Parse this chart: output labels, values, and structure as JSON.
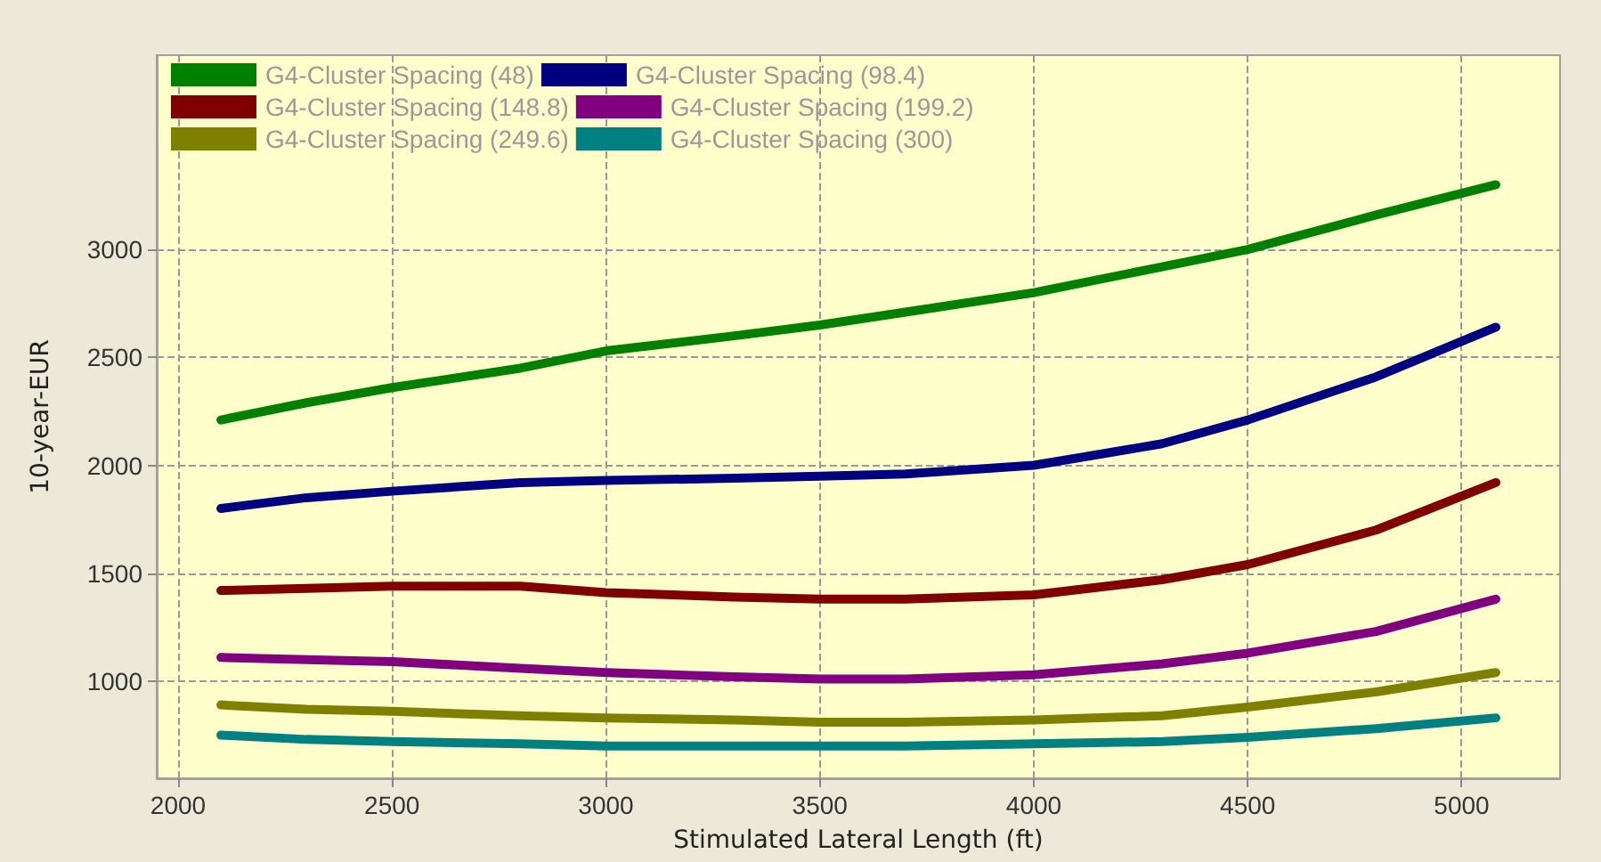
{
  "chart_data": {
    "type": "line",
    "xlabel": "Stimulated Lateral Length (ft)",
    "ylabel": "10-year-EUR",
    "xlim": [
      1950,
      5230
    ],
    "xticks": [
      2000,
      2500,
      3000,
      3500,
      4000,
      4500,
      5000
    ],
    "ylim": [
      550,
      3900
    ],
    "yticks": [
      1000,
      1500,
      2000,
      2500,
      3000
    ],
    "grid": true,
    "legend": "top left",
    "marker": "none",
    "line_style": "solid",
    "x": [
      2100,
      2300,
      2500,
      2800,
      3000,
      3300,
      3500,
      3700,
      4000,
      4300,
      4500,
      4800,
      5080
    ],
    "series": [
      {
        "name": "G4-Cluster Spacing (48)",
        "color": "#008000",
        "values": [
          2210,
          2290,
          2360,
          2450,
          2530,
          2600,
          2650,
          2710,
          2800,
          2920,
          3000,
          3160,
          3300
        ]
      },
      {
        "name": "G4-Cluster Spacing (98.4)",
        "color": "#000080",
        "values": [
          1800,
          1850,
          1880,
          1920,
          1930,
          1940,
          1950,
          1960,
          2000,
          2100,
          2210,
          2410,
          2640
        ]
      },
      {
        "name": "G4-Cluster Spacing (148.8)",
        "color": "#800000",
        "values": [
          1420,
          1430,
          1440,
          1440,
          1410,
          1390,
          1380,
          1380,
          1400,
          1470,
          1540,
          1700,
          1920
        ]
      },
      {
        "name": "G4-Cluster Spacing (199.2)",
        "color": "#800080",
        "values": [
          1110,
          1100,
          1090,
          1060,
          1040,
          1020,
          1010,
          1010,
          1030,
          1080,
          1130,
          1230,
          1380
        ]
      },
      {
        "name": "G4-Cluster Spacing (249.6)",
        "color": "#808000",
        "values": [
          890,
          870,
          860,
          840,
          830,
          820,
          810,
          810,
          820,
          840,
          880,
          950,
          1040
        ]
      },
      {
        "name": "G4-Cluster Spacing (300)",
        "color": "#008080",
        "values": [
          750,
          730,
          720,
          710,
          700,
          700,
          700,
          700,
          710,
          720,
          740,
          780,
          830
        ]
      }
    ]
  }
}
